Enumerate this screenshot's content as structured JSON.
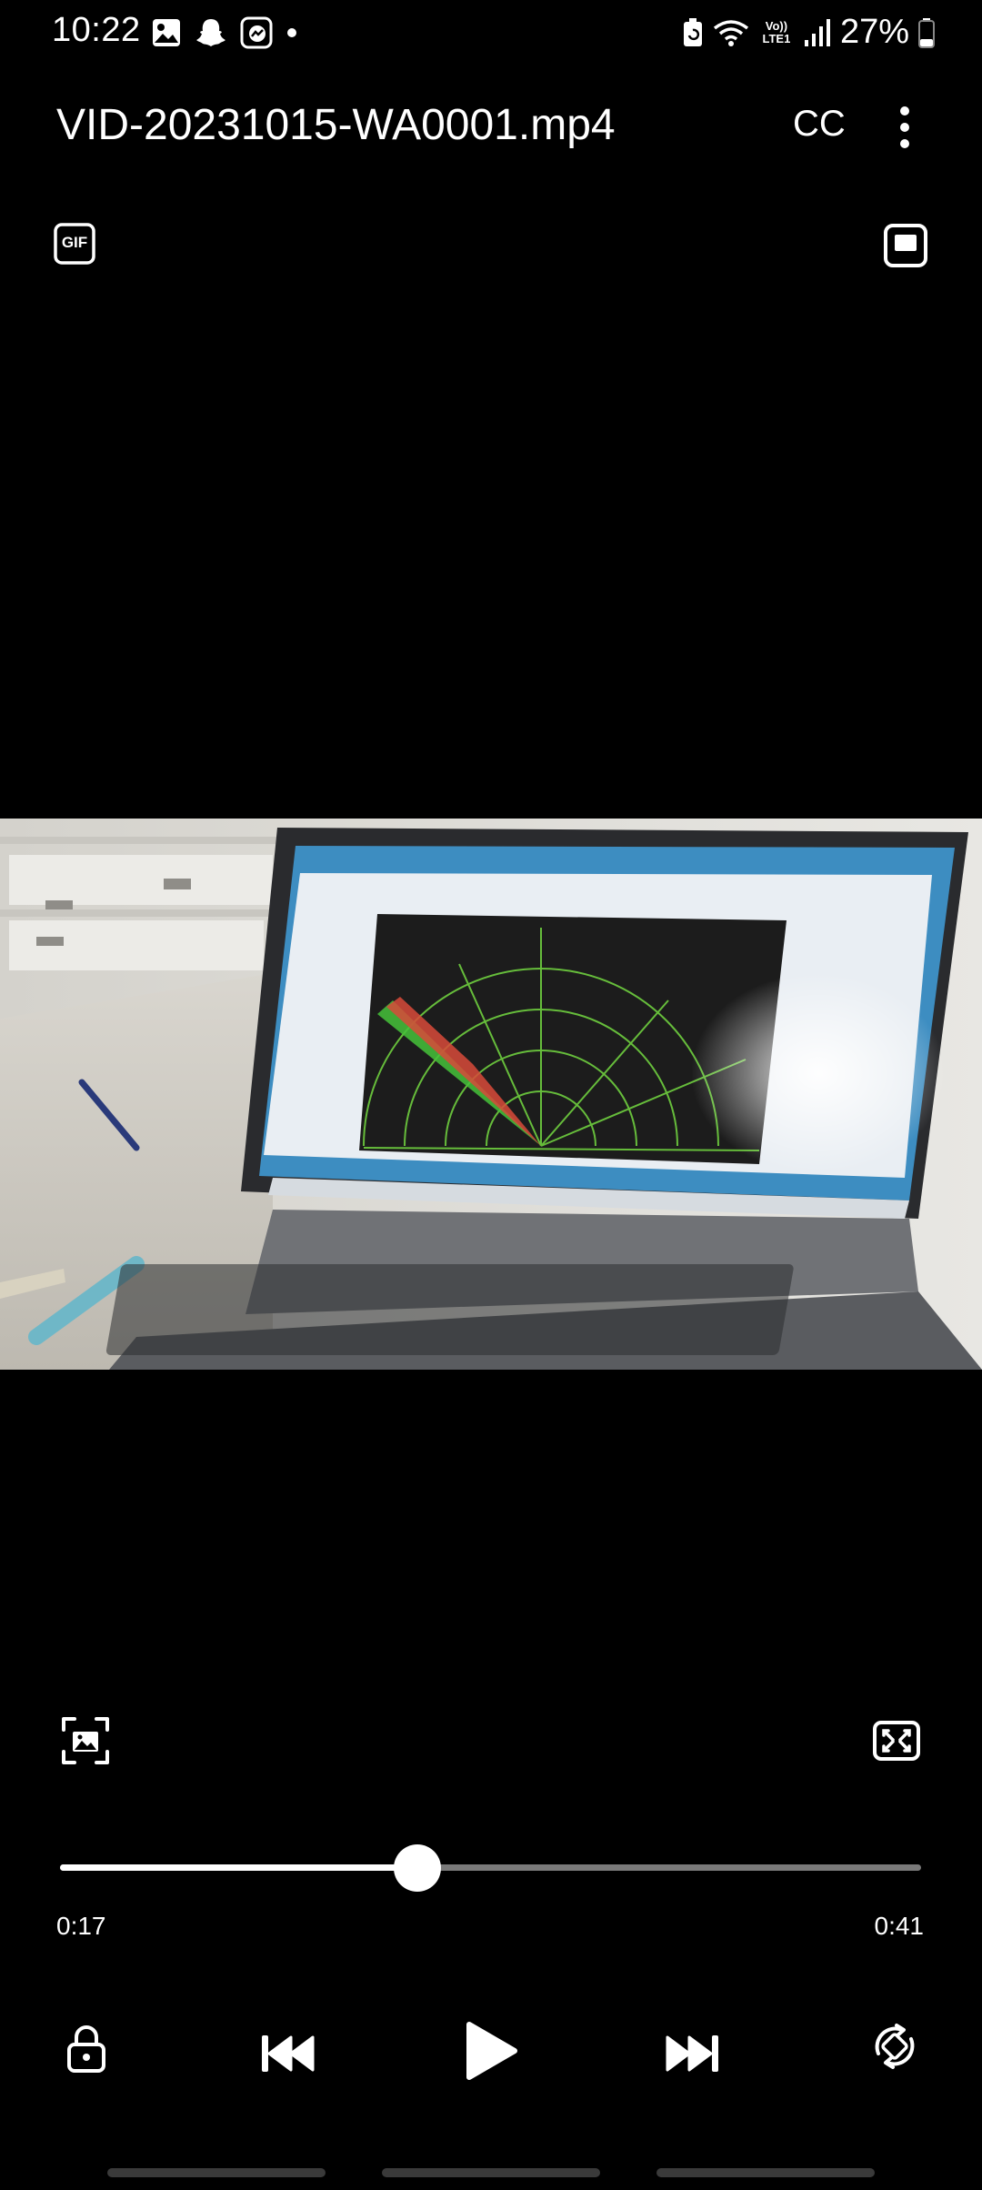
{
  "status_bar": {
    "time": "10:22",
    "battery": "27%",
    "left_icons": [
      "gallery-icon",
      "snapchat-icon",
      "messenger-icon",
      "notification-dot-icon"
    ],
    "right_icons": [
      "battery-saver-icon",
      "wifi-icon",
      "volte-icon",
      "signal-icon",
      "battery-icon"
    ],
    "volte_label": "Vo)) LTE1"
  },
  "app_bar": {
    "title": "VID-20231015-WA0001.mp4",
    "cc_label": "CC"
  },
  "top_controls": {
    "gif_label": "GIF"
  },
  "playback": {
    "current_time": "0:17",
    "total_time": "0:41",
    "progress_fraction": 0.415
  },
  "colors": {
    "background": "#000000",
    "foreground": "#ffffff",
    "track": "#7a7a7a"
  }
}
